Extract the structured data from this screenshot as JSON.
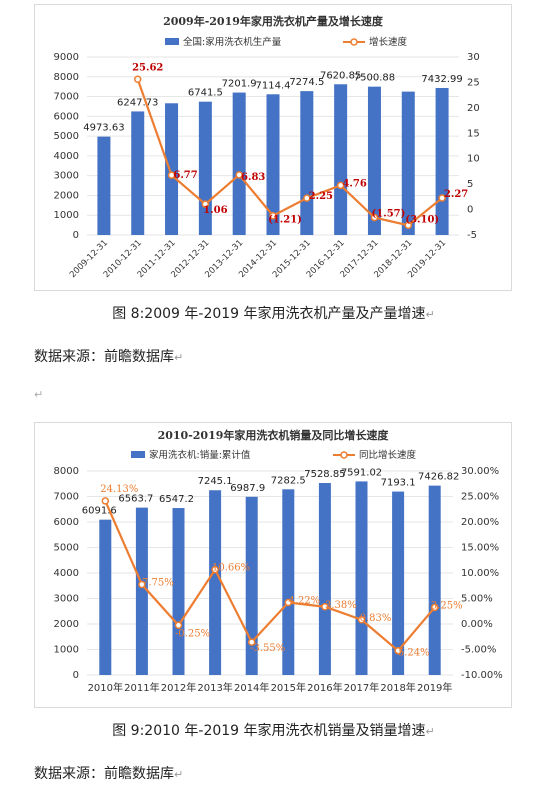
{
  "charts": [
    {
      "id": "chart1",
      "chart_data": {
        "type": "bar",
        "title": "2009年-2019年家用洗衣机产量及增长速度",
        "categories": [
          "2009-12-31",
          "2010-12-31",
          "2011-12-31",
          "2012-12-31",
          "2013-12-31",
          "2014-12-31",
          "2015-12-31",
          "2016-12-31",
          "2017-12-31",
          "2018-12-31",
          "2019-12-31"
        ],
        "series": [
          {
            "name": "全国:家用洗衣机生产量",
            "type": "bar",
            "axis": "left",
            "values": [
              4973.63,
              6247.73,
              6660,
              6741.5,
              7201.9,
              7114.4,
              7274.5,
              7620.85,
              7500.88,
              7250,
              7432.99
            ],
            "labels": [
              "4973.63",
              "6247.73",
              "",
              "6741.5",
              "7201.9",
              "7114.4",
              "7274.5",
              "7620.85",
              "7500.88",
              "",
              "7432.99"
            ]
          },
          {
            "name": "增长速度",
            "type": "line",
            "axis": "right",
            "values": [
              null,
              25.62,
              6.77,
              1.06,
              6.83,
              -1.21,
              2.25,
              4.76,
              -1.57,
              -3.1,
              2.27
            ],
            "labels": [
              "",
              "25.62",
              "6.77",
              "1.06",
              "6.83",
              "(1.21)",
              "2.25",
              "4.76",
              "(1.57)",
              "(3.10)",
              "2.27"
            ]
          }
        ],
        "y_left": {
          "ticks": [
            "0",
            "1000",
            "2000",
            "3000",
            "4000",
            "5000",
            "6000",
            "7000",
            "8000",
            "9000"
          ],
          "range": [
            0,
            9000
          ]
        },
        "y_right": {
          "ticks": [
            "-5",
            "0",
            "5",
            "10",
            "15",
            "20",
            "25",
            "30"
          ],
          "range": [
            -5,
            30
          ]
        },
        "legend": "top",
        "colors": {
          "bar": "#4472c4",
          "line": "#ed7d31",
          "line_label": "#c00000"
        }
      }
    },
    {
      "id": "chart2",
      "chart_data": {
        "type": "bar",
        "title": "2010-2019年家用洗衣机销量及同比增长速度",
        "categories": [
          "2010年",
          "2011年",
          "2012年",
          "2013年",
          "2014年",
          "2015年",
          "2016年",
          "2017年",
          "2018年",
          "2019年"
        ],
        "series": [
          {
            "name": "家用洗衣机:销量:累计值",
            "type": "bar",
            "axis": "left",
            "values": [
              6091.6,
              6563.7,
              6547.2,
              7245.1,
              6987.9,
              7282.5,
              7528.85,
              7591.02,
              7193.1,
              7426.82
            ],
            "labels": [
              "6091.6",
              "6563.7",
              "6547.2",
              "7245.1",
              "6987.9",
              "7282.5",
              "7528.85",
              "7591.02",
              "7193.1",
              "7426.82"
            ]
          },
          {
            "name": "同比增长速度",
            "type": "line",
            "axis": "right",
            "values": [
              24.13,
              7.75,
              -0.25,
              10.66,
              -3.55,
              4.22,
              3.38,
              0.83,
              -5.24,
              3.25
            ],
            "labels": [
              "24.13%",
              "7.75%",
              "-0.25%",
              "10.66%",
              "-3.55%",
              "4.22%",
              "3.38%",
              "0.83%",
              "-5.24%",
              "3.25%"
            ]
          }
        ],
        "y_left": {
          "ticks": [
            "0",
            "1000",
            "2000",
            "3000",
            "4000",
            "5000",
            "6000",
            "7000",
            "8000"
          ],
          "range": [
            0,
            8000
          ]
        },
        "y_right": {
          "ticks": [
            "-10.00%",
            "-5.00%",
            "0.00%",
            "5.00%",
            "10.00%",
            "15.00%",
            "20.00%",
            "25.00%",
            "30.00%"
          ],
          "range": [
            -10,
            30
          ]
        },
        "legend": "top",
        "colors": {
          "bar": "#4472c4",
          "line": "#ed7d31",
          "line_label": "#ed7d31"
        }
      }
    }
  ],
  "captions": {
    "fig8": "图 8:2009 年-2019 年家用洗衣机产量及产量增速",
    "fig9": "图 9:2010 年-2019 年家用洗衣机销量及销量增速"
  },
  "sources": {
    "s1": "数据来源：前瞻数据库",
    "s2": "数据来源：前瞻数据库"
  },
  "marks": {
    "pilcrow": "↵",
    "return": "↵"
  }
}
